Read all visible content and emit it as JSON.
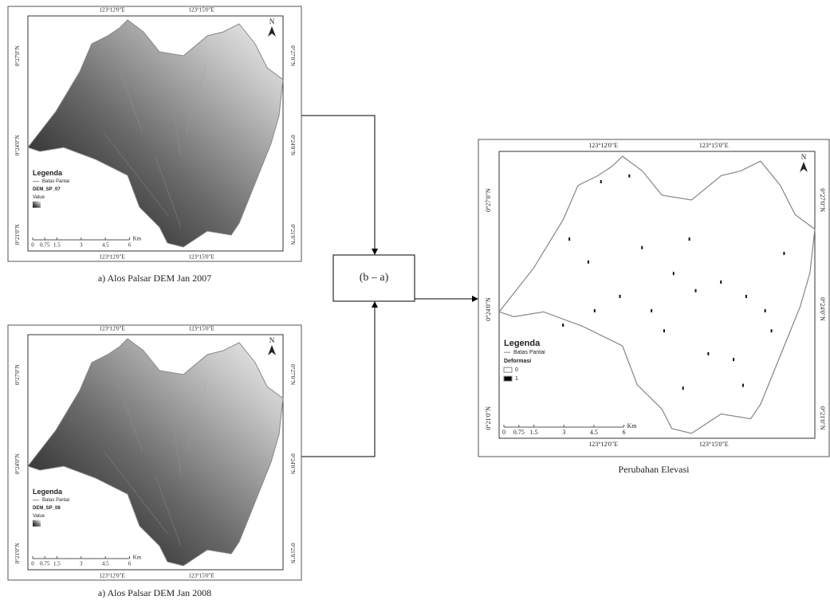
{
  "operation": "(b – a)",
  "panels": [
    {
      "caption": "a) Alos Palsar DEM Jan 2007",
      "lon_labels": [
        "123°12'0\"E",
        "123°15'0\"E"
      ],
      "lat_labels": [
        "0°27'0\"N",
        "0°24'0\"N",
        "0°21'0\"N"
      ],
      "legend_title": "Legenda",
      "legend_items": [
        "Batas Pantai",
        "DEM_SP_07",
        "Value"
      ],
      "scale_labels": [
        "0",
        "0.75",
        "1.5",
        "3",
        "4.5",
        "6"
      ],
      "scale_unit": "Km",
      "north": "N"
    },
    {
      "caption": "a) Alos Palsar DEM Jan 2008",
      "lon_labels": [
        "123°12'0\"E",
        "123°15'0\"E"
      ],
      "lat_labels": [
        "0°27'0\"N",
        "0°24'0\"N",
        "0°21'0\"N"
      ],
      "legend_title": "Legenda",
      "legend_items": [
        "Batas Pantai",
        "DEM_SP_08",
        "Value"
      ],
      "scale_labels": [
        "0",
        "0.75",
        "1.5",
        "3",
        "4.5",
        "6"
      ],
      "scale_unit": "Km",
      "north": "N"
    },
    {
      "caption": "Perubahan Elevasi",
      "lon_labels": [
        "123°12'0\"E",
        "123°15'0\"E"
      ],
      "lat_labels": [
        "0°27'0\"N",
        "0°24'0\"N",
        "0°21'0\"N"
      ],
      "legend_title": "Legenda",
      "legend_items": [
        "Batas Pantai",
        "Deformasi",
        "0",
        "1"
      ],
      "scale_labels": [
        "0",
        "0.75",
        "1.5",
        "3",
        "4.5",
        "6"
      ],
      "scale_unit": "Km",
      "north": "N"
    }
  ]
}
